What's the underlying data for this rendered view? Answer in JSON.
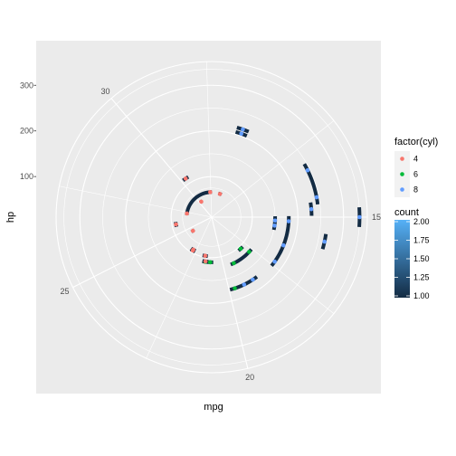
{
  "chart_data": {
    "type": "scatter",
    "coord": "polar",
    "theta_axis": "mpg",
    "radius_axis": "hp",
    "xlabel": "mpg",
    "ylabel": "hp",
    "theta_ticks": [
      15,
      20,
      25,
      30
    ],
    "r_ticks": [
      100,
      200,
      300
    ],
    "x_range": [
      10.4,
      33.9
    ],
    "r_range": [
      52,
      335
    ],
    "grid": true,
    "points": [
      {
        "mpg": 21.0,
        "hp": 110,
        "cyl": 6
      },
      {
        "mpg": 21.0,
        "hp": 110,
        "cyl": 6
      },
      {
        "mpg": 22.8,
        "hp": 93,
        "cyl": 4
      },
      {
        "mpg": 21.4,
        "hp": 110,
        "cyl": 6
      },
      {
        "mpg": 18.7,
        "hp": 175,
        "cyl": 8
      },
      {
        "mpg": 18.1,
        "hp": 105,
        "cyl": 6
      },
      {
        "mpg": 14.3,
        "hp": 245,
        "cyl": 8
      },
      {
        "mpg": 24.4,
        "hp": 62,
        "cyl": 4
      },
      {
        "mpg": 22.8,
        "hp": 95,
        "cyl": 4
      },
      {
        "mpg": 19.2,
        "hp": 123,
        "cyl": 6
      },
      {
        "mpg": 17.8,
        "hp": 123,
        "cyl": 6
      },
      {
        "mpg": 16.4,
        "hp": 180,
        "cyl": 8
      },
      {
        "mpg": 17.3,
        "hp": 180,
        "cyl": 8
      },
      {
        "mpg": 15.2,
        "hp": 180,
        "cyl": 8
      },
      {
        "mpg": 10.4,
        "hp": 205,
        "cyl": 8
      },
      {
        "mpg": 10.4,
        "hp": 215,
        "cyl": 8
      },
      {
        "mpg": 14.7,
        "hp": 230,
        "cyl": 8
      },
      {
        "mpg": 32.4,
        "hp": 66,
        "cyl": 4
      },
      {
        "mpg": 30.4,
        "hp": 52,
        "cyl": 4
      },
      {
        "mpg": 33.9,
        "hp": 65,
        "cyl": 4
      },
      {
        "mpg": 21.5,
        "hp": 97,
        "cyl": 4
      },
      {
        "mpg": 15.5,
        "hp": 150,
        "cyl": 8
      },
      {
        "mpg": 15.2,
        "hp": 150,
        "cyl": 8
      },
      {
        "mpg": 13.3,
        "hp": 245,
        "cyl": 8
      },
      {
        "mpg": 19.2,
        "hp": 175,
        "cyl": 8
      },
      {
        "mpg": 27.3,
        "hp": 66,
        "cyl": 4
      },
      {
        "mpg": 26.0,
        "hp": 91,
        "cyl": 4
      },
      {
        "mpg": 30.4,
        "hp": 113,
        "cyl": 4
      },
      {
        "mpg": 15.8,
        "hp": 264,
        "cyl": 8
      },
      {
        "mpg": 19.7,
        "hp": 175,
        "cyl": 6
      },
      {
        "mpg": 15.0,
        "hp": 335,
        "cyl": 8
      },
      {
        "mpg": 21.4,
        "hp": 109,
        "cyl": 4
      }
    ],
    "legend": {
      "color_title": "factor(cyl)",
      "color_entries": [
        {
          "label": "4",
          "color": "#F8766D"
        },
        {
          "label": "6",
          "color": "#00BA38"
        },
        {
          "label": "8",
          "color": "#619CFF"
        }
      ],
      "count_title": "count",
      "count_labels": [
        "2.00",
        "1.75",
        "1.50",
        "1.25",
        "1.00"
      ],
      "count_range": [
        1.0,
        2.0
      ],
      "count_gradient": [
        "#132B43",
        "#56B1F7"
      ]
    },
    "colors": {
      "panel_background": "#EBEBEB",
      "grid": "#FFFFFF",
      "segment_base": "#132B43",
      "segment_high": "#56B1F7"
    }
  }
}
